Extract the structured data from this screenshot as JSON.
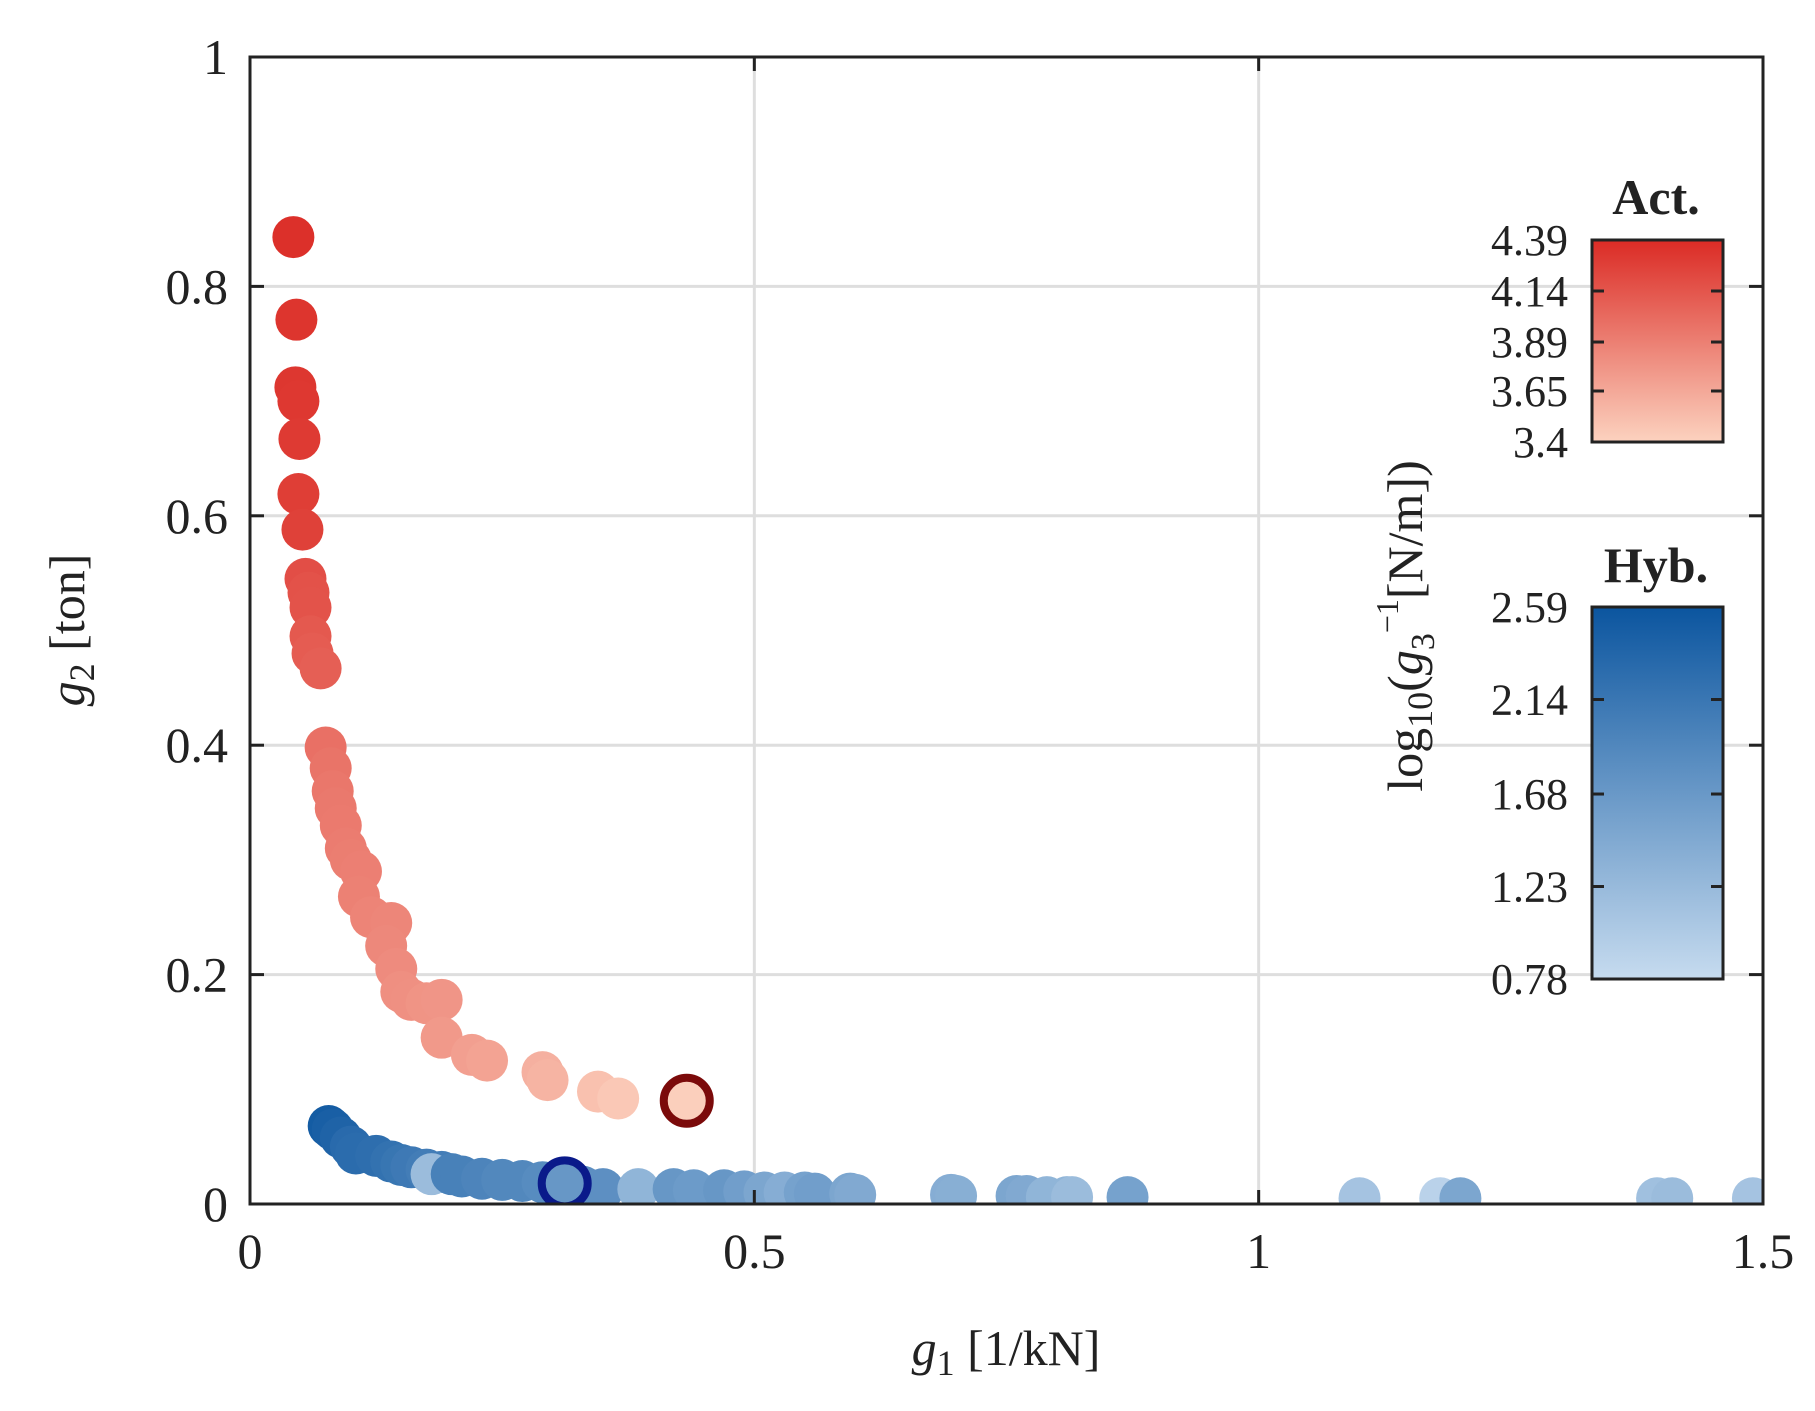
{
  "chart_data": {
    "type": "scatter",
    "title": "",
    "xlabel": {
      "var": "g",
      "sub": "1",
      "unit": "[1/kN]"
    },
    "ylabel": {
      "var": "g",
      "sub": "2",
      "unit": "[ton]"
    },
    "colorbar_label": {
      "prefix": "log",
      "prefix_sub": "10",
      "open": "(",
      "var": "g",
      "sub": "3",
      "sup": "−1",
      "unit": "[N/m])"
    },
    "xlim": [
      0,
      1.5
    ],
    "ylim": [
      0,
      1
    ],
    "grid": true,
    "x_ticks": [
      "0",
      "0.5",
      "1",
      "1.5"
    ],
    "y_ticks": [
      "0",
      "0.2",
      "0.4",
      "0.6",
      "0.8",
      "1"
    ],
    "series": [
      {
        "name": "Act.",
        "color_low": "#fcd2bf",
        "color_high": "#db2b25",
        "clim": [
          3.4,
          4.39
        ],
        "cbar_ticks": [
          "3.4",
          "3.65",
          "3.89",
          "4.14",
          "4.39"
        ],
        "points": [
          [
            0.043,
            0.843,
            4.36
          ],
          [
            0.046,
            0.771,
            4.33
          ],
          [
            0.045,
            0.712,
            4.32
          ],
          [
            0.048,
            0.7,
            4.31
          ],
          [
            0.049,
            0.667,
            4.3
          ],
          [
            0.048,
            0.619,
            4.28
          ],
          [
            0.052,
            0.588,
            4.26
          ],
          [
            0.055,
            0.545,
            4.18
          ],
          [
            0.058,
            0.533,
            4.16
          ],
          [
            0.06,
            0.52,
            4.15
          ],
          [
            0.06,
            0.495,
            4.12
          ],
          [
            0.062,
            0.48,
            4.1
          ],
          [
            0.07,
            0.467,
            4.08
          ],
          [
            0.075,
            0.398,
            3.98
          ],
          [
            0.08,
            0.38,
            3.96
          ],
          [
            0.082,
            0.36,
            3.94
          ],
          [
            0.085,
            0.345,
            3.93
          ],
          [
            0.09,
            0.33,
            3.92
          ],
          [
            0.095,
            0.31,
            3.91
          ],
          [
            0.1,
            0.3,
            3.9
          ],
          [
            0.11,
            0.29,
            3.89
          ],
          [
            0.108,
            0.268,
            3.88
          ],
          [
            0.12,
            0.25,
            3.86
          ],
          [
            0.14,
            0.245,
            3.85
          ],
          [
            0.135,
            0.225,
            3.84
          ],
          [
            0.145,
            0.205,
            3.82
          ],
          [
            0.15,
            0.185,
            3.8
          ],
          [
            0.16,
            0.178,
            3.79
          ],
          [
            0.175,
            0.175,
            3.77
          ],
          [
            0.19,
            0.178,
            3.76
          ],
          [
            0.19,
            0.145,
            3.74
          ],
          [
            0.22,
            0.13,
            3.7
          ],
          [
            0.235,
            0.125,
            3.68
          ],
          [
            0.29,
            0.115,
            3.6
          ],
          [
            0.295,
            0.108,
            3.58
          ],
          [
            0.345,
            0.098,
            3.5
          ],
          [
            0.365,
            0.092,
            3.46
          ]
        ],
        "highlight": [
          0.433,
          0.09,
          3.42
        ],
        "highlight_ring": "#7b0a0a"
      },
      {
        "name": "Hyb.",
        "color_low": "#c6dbef",
        "color_high": "#0b559f",
        "clim": [
          0.78,
          2.59
        ],
        "cbar_ticks": [
          "0.78",
          "1.23",
          "1.68",
          "2.14",
          "2.59"
        ],
        "points": [
          [
            0.078,
            0.068,
            2.5
          ],
          [
            0.082,
            0.065,
            2.45
          ],
          [
            0.09,
            0.058,
            2.4
          ],
          [
            0.1,
            0.05,
            2.3
          ],
          [
            0.105,
            0.044,
            2.28
          ],
          [
            0.125,
            0.042,
            2.25
          ],
          [
            0.14,
            0.037,
            2.2
          ],
          [
            0.15,
            0.034,
            2.15
          ],
          [
            0.16,
            0.032,
            2.1
          ],
          [
            0.175,
            0.03,
            2.05
          ],
          [
            0.19,
            0.028,
            2.05
          ],
          [
            0.18,
            0.026,
            1.2
          ],
          [
            0.2,
            0.026,
            2.0
          ],
          [
            0.21,
            0.024,
            2.0
          ],
          [
            0.23,
            0.022,
            1.95
          ],
          [
            0.25,
            0.021,
            1.9
          ],
          [
            0.27,
            0.02,
            1.9
          ],
          [
            0.29,
            0.019,
            1.85
          ],
          [
            0.315,
            0.016,
            1.85
          ],
          [
            0.33,
            0.015,
            1.8
          ],
          [
            0.35,
            0.013,
            1.8
          ],
          [
            0.385,
            0.013,
            1.3
          ],
          [
            0.42,
            0.013,
            1.7
          ],
          [
            0.44,
            0.012,
            1.65
          ],
          [
            0.47,
            0.012,
            1.7
          ],
          [
            0.49,
            0.011,
            1.6
          ],
          [
            0.51,
            0.01,
            1.5
          ],
          [
            0.53,
            0.01,
            1.4
          ],
          [
            0.55,
            0.01,
            1.55
          ],
          [
            0.56,
            0.009,
            1.6
          ],
          [
            0.595,
            0.009,
            1.5
          ],
          [
            0.6,
            0.008,
            1.45
          ],
          [
            0.695,
            0.008,
            1.4
          ],
          [
            0.7,
            0.007,
            1.38
          ],
          [
            0.76,
            0.007,
            1.5
          ],
          [
            0.77,
            0.007,
            1.45
          ],
          [
            0.79,
            0.006,
            1.3
          ],
          [
            0.81,
            0.006,
            1.3
          ],
          [
            0.815,
            0.006,
            1.2
          ],
          [
            0.87,
            0.006,
            1.55
          ],
          [
            1.1,
            0.005,
            1.1
          ],
          [
            1.18,
            0.005,
            0.9
          ],
          [
            1.2,
            0.005,
            1.5
          ],
          [
            1.395,
            0.005,
            1.15
          ],
          [
            1.41,
            0.005,
            1.2
          ],
          [
            1.49,
            0.005,
            1.1
          ]
        ],
        "highlight": [
          0.312,
          0.018,
          1.7
        ],
        "highlight_ring": "#0a1a8a"
      }
    ]
  }
}
